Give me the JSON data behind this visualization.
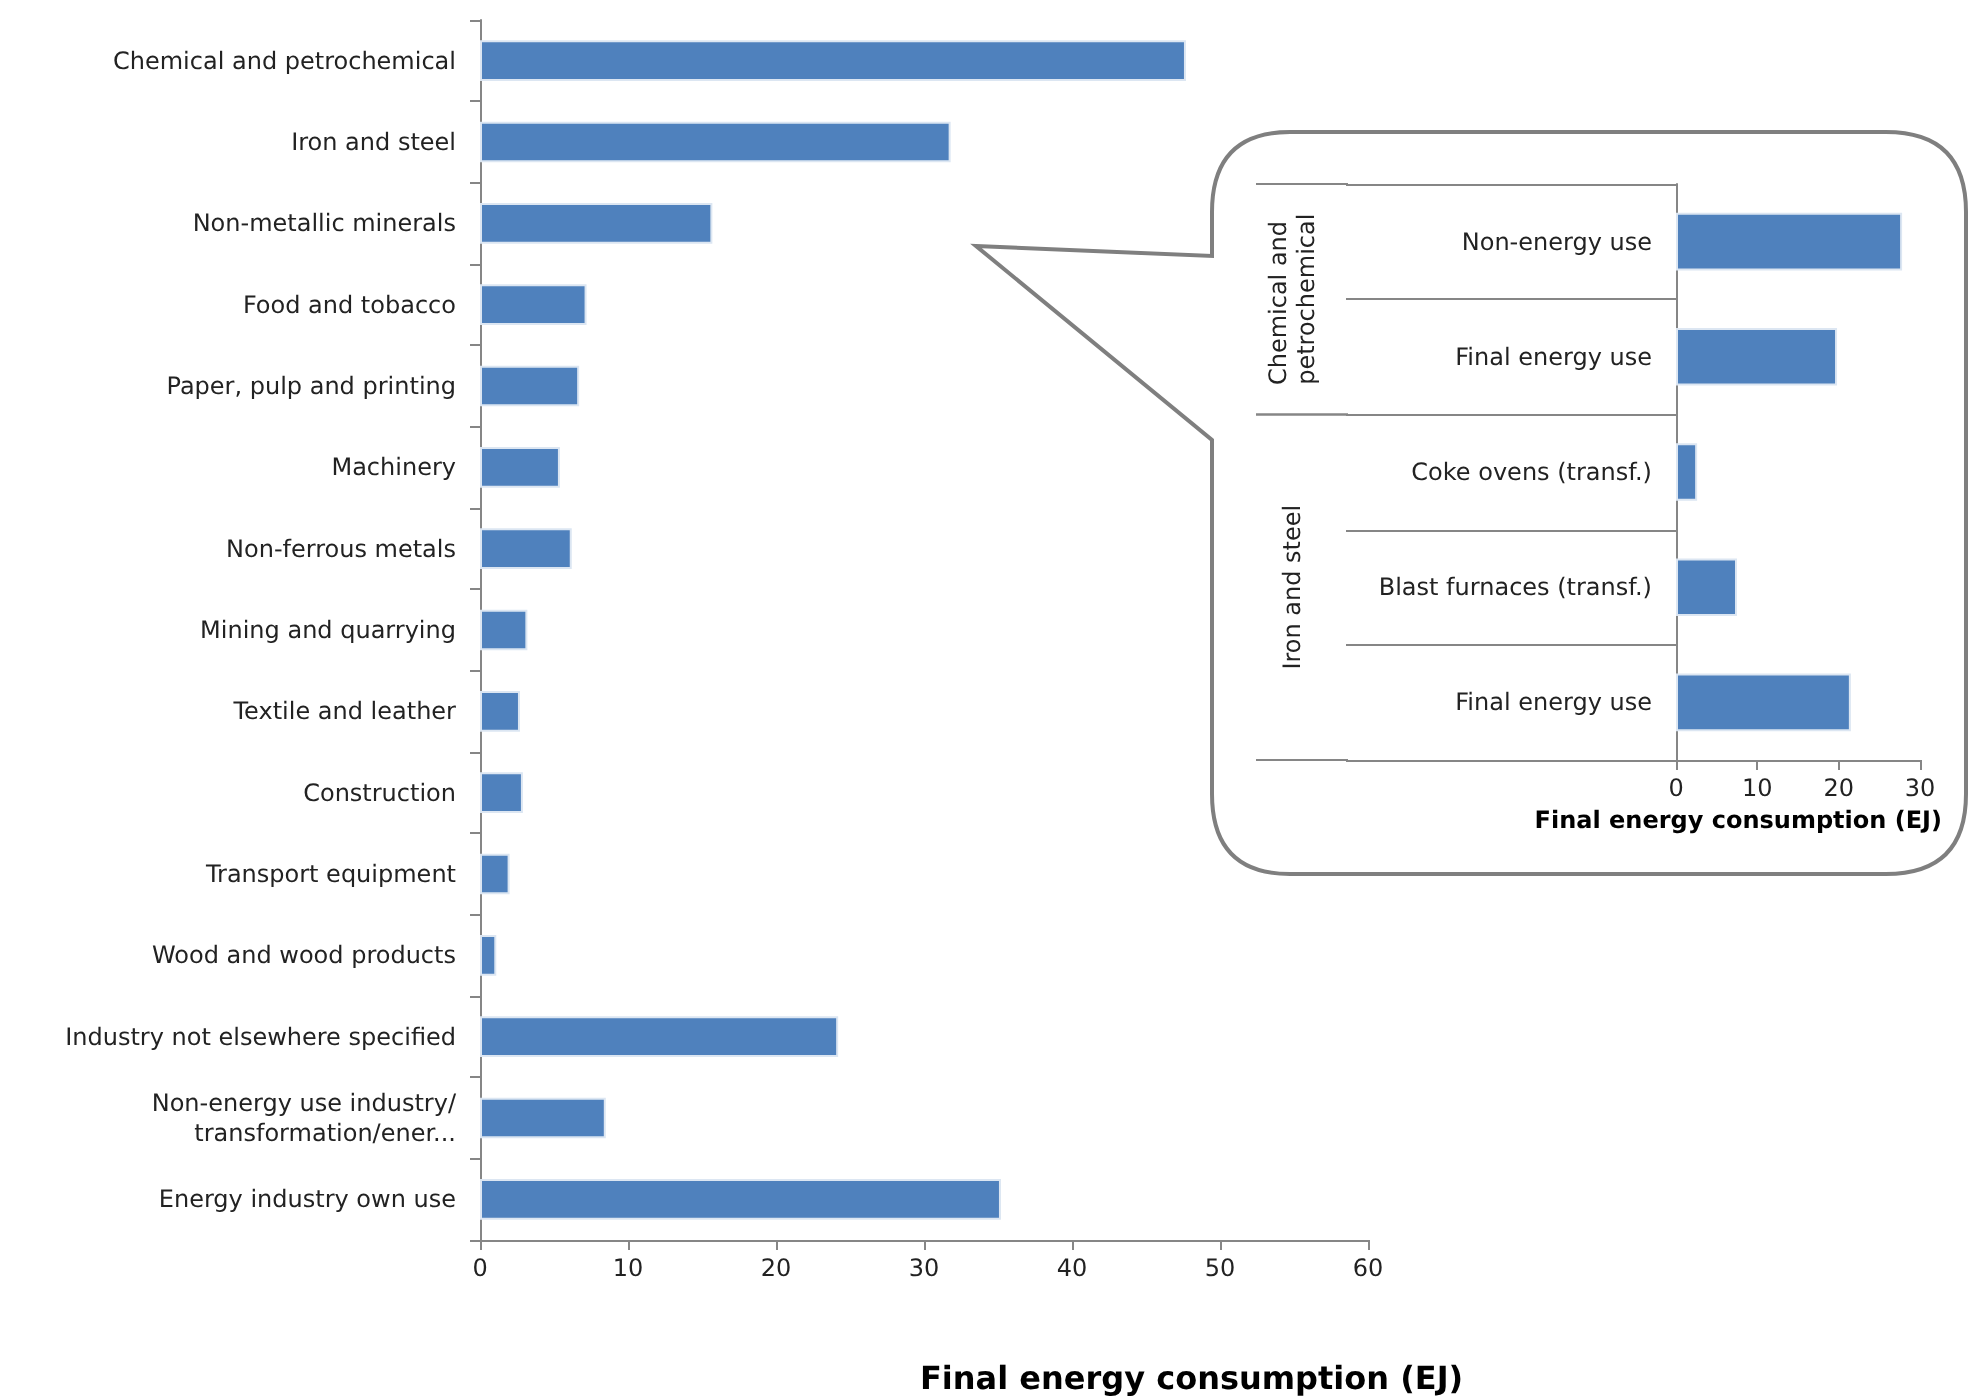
{
  "chart_data": [
    {
      "type": "bar",
      "orientation": "horizontal",
      "xlabel": "Final energy consumption (EJ)",
      "categories": [
        "Chemical and petrochemical",
        "Iron and steel",
        "Non-metallic minerals",
        "Food and tobacco",
        "Paper, pulp and printing",
        "Machinery",
        "Non-ferrous metals",
        "Mining and quarrying",
        "Textile and leather",
        "Construction",
        "Transport equipment",
        "Wood and wood products",
        "Industry not elsewhere specified",
        "Non-energy use industry/transformation/ener...",
        "Energy industry own use"
      ],
      "values": [
        47.7,
        31.8,
        15.7,
        7.2,
        6.7,
        5.4,
        6.2,
        3.2,
        2.7,
        2.9,
        2.0,
        1.1,
        24.2,
        8.5,
        35.2
      ],
      "color": "#4f81bd",
      "xlim": [
        0,
        60
      ],
      "xticks": [
        0,
        10,
        20,
        30,
        40,
        50,
        60
      ],
      "grid": false
    },
    {
      "type": "bar",
      "orientation": "horizontal",
      "xlabel": "Final energy consumption (EJ)",
      "categories": [
        "Non-energy use",
        "Final energy use",
        "Coke ovens (transf.)",
        "Blast furnaces (transf.)",
        "Final energy use"
      ],
      "values": [
        27.8,
        19.8,
        2.6,
        7.5,
        21.5
      ],
      "color": "#4f81bd",
      "xlim": [
        0,
        30
      ],
      "xticks": [
        0,
        10,
        20,
        30
      ],
      "grid": false,
      "annotations": [
        "Chemical and petrochemical",
        "Iron and steel"
      ]
    }
  ]
}
